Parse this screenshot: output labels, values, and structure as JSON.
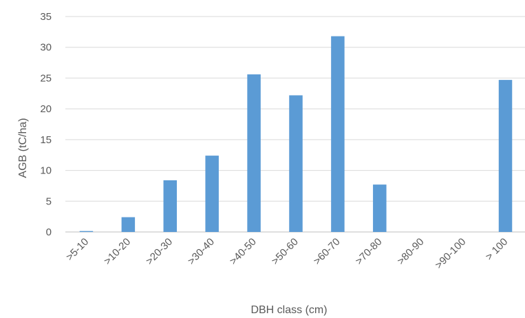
{
  "chart_data": {
    "type": "bar",
    "title": "",
    "xlabel": "DBH class (cm)",
    "ylabel": "AGB (tC/ha)",
    "categories": [
      ">5-10",
      ">10-20",
      ">20-30",
      ">30-40",
      ">40-50",
      ">50-60",
      ">60-70",
      ">70-80",
      ">80-90",
      ">90-100",
      "> 100"
    ],
    "series": [
      {
        "values": [
          0.15,
          2.4,
          8.4,
          12.4,
          25.6,
          22.2,
          31.8,
          7.7,
          0,
          0,
          24.7
        ]
      }
    ],
    "ylim": [
      0,
      35
    ],
    "yticks": [
      0,
      5,
      10,
      15,
      20,
      25,
      30,
      35
    ],
    "grid": true,
    "legend": "none",
    "colors": {
      "bar": "#5b9bd5",
      "grid": "#d9d9d9",
      "axis": "#bfbfbf",
      "text": "#595959"
    }
  }
}
